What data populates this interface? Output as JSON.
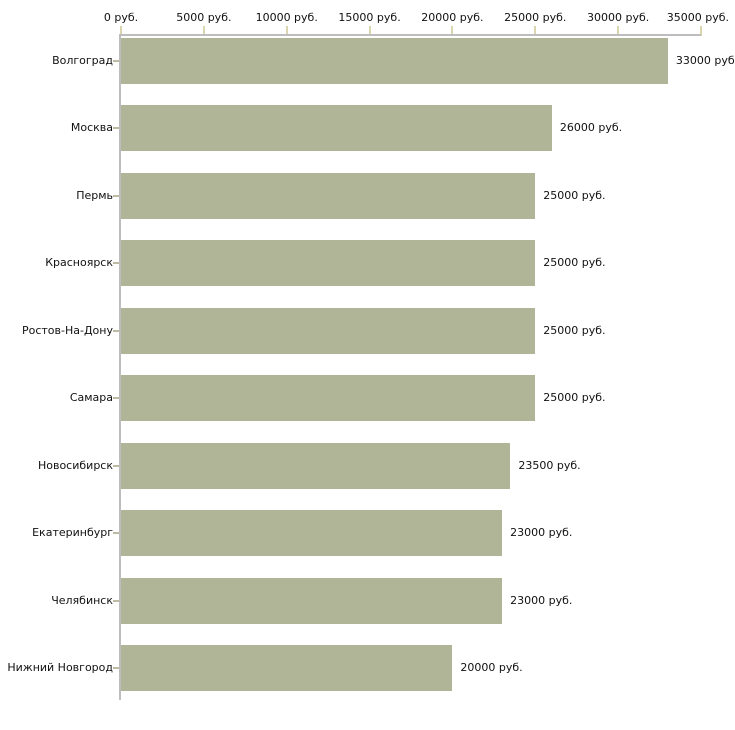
{
  "chart_data": {
    "type": "bar",
    "orientation": "horizontal",
    "categories": [
      "Волгоград",
      "Москва",
      "Пермь",
      "Красноярск",
      "Ростов-На-Дону",
      "Самара",
      "Новосибирск",
      "Екатеринбург",
      "Челябинск",
      "Нижний Новгород"
    ],
    "values": [
      33000,
      26000,
      25000,
      25000,
      25000,
      25000,
      23500,
      23000,
      23000,
      20000
    ],
    "value_labels": [
      "33000 руб",
      "26000 руб.",
      "25000 руб.",
      "25000 руб.",
      "25000 руб.",
      "25000 руб.",
      "23500 руб.",
      "23000 руб.",
      "23000 руб.",
      "20000 руб."
    ],
    "x_tick_values": [
      0,
      5000,
      10000,
      15000,
      20000,
      25000,
      30000,
      35000
    ],
    "x_tick_labels": [
      "0 руб.",
      "5000 руб.",
      "10000 руб.",
      "15000 руб.",
      "20000 руб.",
      "25000 руб.",
      "30000 руб.",
      "35000 руб."
    ],
    "xlim": [
      0,
      35000
    ],
    "unit": "руб.",
    "legend": null,
    "grid": false,
    "colors": {
      "bar": "#b0b598",
      "axis_line": "#bdbdbd",
      "axis_tick": "#d9d6ad",
      "row_tick": "#bdbba2",
      "text": "#111111",
      "background": "#ffffff"
    }
  }
}
